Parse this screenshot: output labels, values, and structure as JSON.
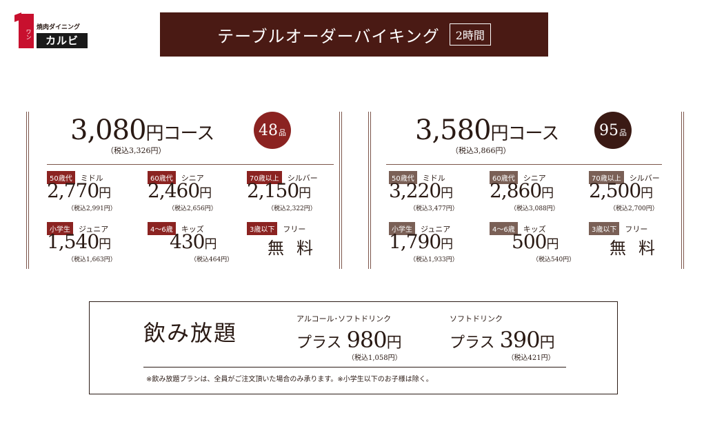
{
  "logo": {
    "small_text": "焼肉ダイニング",
    "one_text": "ワン",
    "brand": "カルビ"
  },
  "header": {
    "title": "テーブルオーダーバイキング",
    "badge": "2時間"
  },
  "colors": {
    "title_bg": "#4a1a14",
    "course1_accent": "#8b2321",
    "course2_accent": "#3a1a14",
    "course2_tag": "#7a6056"
  },
  "course_48": {
    "price": "3,080",
    "yen_course": "円コース",
    "tax": "（税込3,326円）",
    "items_count": "48",
    "items_unit": "品",
    "tiers": [
      {
        "tag": "50歳代",
        "label": "ミドル",
        "price": "2,770",
        "yen": "円",
        "tax": "（税込2,991円）"
      },
      {
        "tag": "60歳代",
        "label": "シニア",
        "price": "2,460",
        "yen": "円",
        "tax": "（税込2,656円）"
      },
      {
        "tag": "70歳以上",
        "label": "シルバー",
        "price": "2,150",
        "yen": "円",
        "tax": "（税込2,322円）"
      },
      {
        "tag": "小学生",
        "label": "ジュニア",
        "price": "1,540",
        "yen": "円",
        "tax": "（税込1,663円）"
      },
      {
        "tag": "4～6歳",
        "label": "キッズ",
        "price": "430",
        "yen": "円",
        "tax": "（税込464円）"
      },
      {
        "tag": "3歳以下",
        "label": "フリー",
        "free": "無料"
      }
    ]
  },
  "course_95": {
    "price": "3,580",
    "yen_course": "円コース",
    "tax": "（税込3,866円）",
    "items_count": "95",
    "items_unit": "品",
    "tiers": [
      {
        "tag": "50歳代",
        "label": "ミドル",
        "price": "3,220",
        "yen": "円",
        "tax": "（税込3,477円）"
      },
      {
        "tag": "60歳代",
        "label": "シニア",
        "price": "2,860",
        "yen": "円",
        "tax": "（税込3,088円）"
      },
      {
        "tag": "70歳以上",
        "label": "シルバー",
        "price": "2,500",
        "yen": "円",
        "tax": "（税込2,700円）"
      },
      {
        "tag": "小学生",
        "label": "ジュニア",
        "price": "1,790",
        "yen": "円",
        "tax": "（税込1,933円）"
      },
      {
        "tag": "4～6歳",
        "label": "キッズ",
        "price": "500",
        "yen": "円",
        "tax": "（税込540円）"
      },
      {
        "tag": "3歳以下",
        "label": "フリー",
        "free": "無料"
      }
    ]
  },
  "drinks": {
    "title": "飲み放題",
    "options": [
      {
        "label": "アルコール･ソフトドリンク",
        "plus": "プラス",
        "price": "980",
        "yen": "円",
        "tax": "（税込1,058円）"
      },
      {
        "label": "ソフトドリンク",
        "plus": "プラス",
        "price": "390",
        "yen": "円",
        "tax": "（税込421円）"
      }
    ],
    "note": "※飲み放題プランは、全員がご注文頂いた場合のみ承ります。※小学生以下のお子様は除く。"
  }
}
